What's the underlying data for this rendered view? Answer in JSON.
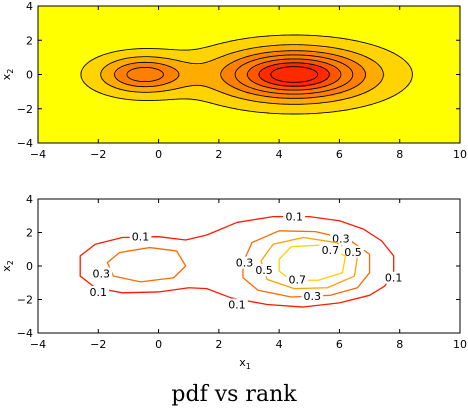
{
  "caption": "pdf vs rank",
  "chart_data": [
    {
      "type": "contour",
      "subplot": "top",
      "xlabel": "",
      "ylabel": "x2",
      "xlim": [
        -4,
        10
      ],
      "ylim": [
        -4,
        4
      ],
      "xticks": [
        -4,
        -2,
        0,
        2,
        4,
        6,
        8,
        10
      ],
      "yticks": [
        -4,
        -2,
        0,
        2,
        4
      ],
      "xtick_labels": [
        "−4",
        "−2",
        "0",
        "2",
        "4",
        "6",
        "8",
        "10"
      ],
      "ytick_labels": [
        "−4",
        "−2",
        "0",
        "2",
        "4"
      ],
      "components": [
        {
          "center": [
            -0.5,
            0
          ],
          "sigma_x": 1.0,
          "sigma_y": 0.72,
          "weight": 0.6
        },
        {
          "center": [
            4.5,
            0
          ],
          "sigma_x": 1.7,
          "sigma_y": 1.0,
          "weight": 1.0
        }
      ],
      "contour_levels": [
        0.07,
        0.22,
        0.38,
        0.52,
        0.66,
        0.79,
        0.9
      ],
      "contour_line_color": "#000000",
      "colormap": [
        "#ffff00",
        "#ffd400",
        "#ffab00",
        "#ff8000",
        "#ff5600",
        "#ff2a00"
      ],
      "background_color": "#ffff00",
      "filled": true
    },
    {
      "type": "contour",
      "subplot": "bottom",
      "xlabel": "x1",
      "ylabel": "x2",
      "xlim": [
        -4,
        10
      ],
      "ylim": [
        -4,
        4
      ],
      "xticks": [
        -4,
        -2,
        0,
        2,
        4,
        6,
        8,
        10
      ],
      "yticks": [
        -4,
        -2,
        0,
        2,
        4
      ],
      "xtick_labels": [
        "−4",
        "−2",
        "0",
        "2",
        "4",
        "6",
        "8",
        "10"
      ],
      "ytick_labels": [
        "−4",
        "−2",
        "0",
        "2",
        "4"
      ],
      "contours": [
        {
          "level": 0.1,
          "color": "#ff1a00",
          "points": [
            [
              -2.6,
              0.6
            ],
            [
              -2.1,
              1.3
            ],
            [
              -1.2,
              1.7
            ],
            [
              0.0,
              1.75
            ],
            [
              0.9,
              1.55
            ],
            [
              1.6,
              1.85
            ],
            [
              2.6,
              2.6
            ],
            [
              3.8,
              2.95
            ],
            [
              5.0,
              2.95
            ],
            [
              6.0,
              2.7
            ],
            [
              6.8,
              2.2
            ],
            [
              7.4,
              1.5
            ],
            [
              7.8,
              0.6
            ],
            [
              7.8,
              -0.4
            ],
            [
              7.5,
              -1.2
            ],
            [
              7.0,
              -1.75
            ],
            [
              6.0,
              -2.2
            ],
            [
              4.8,
              -2.45
            ],
            [
              3.6,
              -2.3
            ],
            [
              2.4,
              -1.9
            ],
            [
              1.6,
              -1.35
            ],
            [
              1.0,
              -1.3
            ],
            [
              0.0,
              -1.55
            ],
            [
              -1.2,
              -1.6
            ],
            [
              -2.1,
              -1.3
            ],
            [
              -2.6,
              -0.6
            ],
            [
              -2.6,
              0.6
            ]
          ],
          "labels": [
            {
              "text": "0.1",
              "x": -0.6,
              "y": 1.75
            },
            {
              "text": "0.1",
              "x": -2.0,
              "y": -1.55
            },
            {
              "text": "0.1",
              "x": 4.5,
              "y": 2.95
            },
            {
              "text": "0.1",
              "x": 2.6,
              "y": -2.3
            },
            {
              "text": "0.1",
              "x": 7.8,
              "y": -0.7
            }
          ]
        },
        {
          "level": 0.3,
          "color": "#ff6a00",
          "points": [
            [
              -1.7,
              0.2
            ],
            [
              -1.3,
              0.8
            ],
            [
              -0.3,
              1.1
            ],
            [
              0.6,
              0.9
            ],
            [
              0.9,
              0.0
            ],
            [
              0.5,
              -0.7
            ],
            [
              -0.6,
              -0.95
            ],
            [
              -1.5,
              -0.6
            ],
            [
              -1.7,
              0.2
            ]
          ],
          "labels": [
            {
              "text": "0.3",
              "x": -1.9,
              "y": -0.45
            }
          ]
        },
        {
          "level": 0.3,
          "color": "#ff6a00",
          "points": [
            [
              2.8,
              0.2
            ],
            [
              3.1,
              1.4
            ],
            [
              4.0,
              2.1
            ],
            [
              5.2,
              2.05
            ],
            [
              6.3,
              1.6
            ],
            [
              7.0,
              0.7
            ],
            [
              7.0,
              -0.4
            ],
            [
              6.6,
              -1.3
            ],
            [
              5.7,
              -1.75
            ],
            [
              4.4,
              -1.85
            ],
            [
              3.3,
              -1.45
            ],
            [
              2.8,
              -0.7
            ],
            [
              2.8,
              0.2
            ]
          ],
          "labels": [
            {
              "text": "0.3",
              "x": 2.85,
              "y": 0.2
            },
            {
              "text": "0.3",
              "x": 6.05,
              "y": 1.65
            },
            {
              "text": "0.3",
              "x": 5.1,
              "y": -1.8
            }
          ]
        },
        {
          "level": 0.5,
          "color": "#ffa000",
          "points": [
            [
              3.4,
              0.3
            ],
            [
              3.8,
              1.3
            ],
            [
              4.8,
              1.7
            ],
            [
              5.9,
              1.4
            ],
            [
              6.6,
              0.6
            ],
            [
              6.5,
              -0.6
            ],
            [
              5.6,
              -1.3
            ],
            [
              4.5,
              -1.35
            ],
            [
              3.6,
              -0.8
            ],
            [
              3.4,
              0.3
            ]
          ],
          "labels": [
            {
              "text": "0.5",
              "x": 3.5,
              "y": -0.25
            },
            {
              "text": "0.5",
              "x": 6.45,
              "y": 0.85
            }
          ]
        },
        {
          "level": 0.7,
          "color": "#ffd000",
          "points": [
            [
              4.0,
              0.4
            ],
            [
              4.4,
              1.15
            ],
            [
              5.4,
              1.25
            ],
            [
              6.2,
              0.6
            ],
            [
              6.1,
              -0.4
            ],
            [
              5.3,
              -0.85
            ],
            [
              4.4,
              -0.85
            ],
            [
              4.0,
              -0.3
            ],
            [
              4.0,
              0.4
            ]
          ],
          "labels": [
            {
              "text": "0.7",
              "x": 5.7,
              "y": 0.95
            },
            {
              "text": "0.7",
              "x": 4.6,
              "y": -0.8
            }
          ]
        }
      ]
    }
  ]
}
